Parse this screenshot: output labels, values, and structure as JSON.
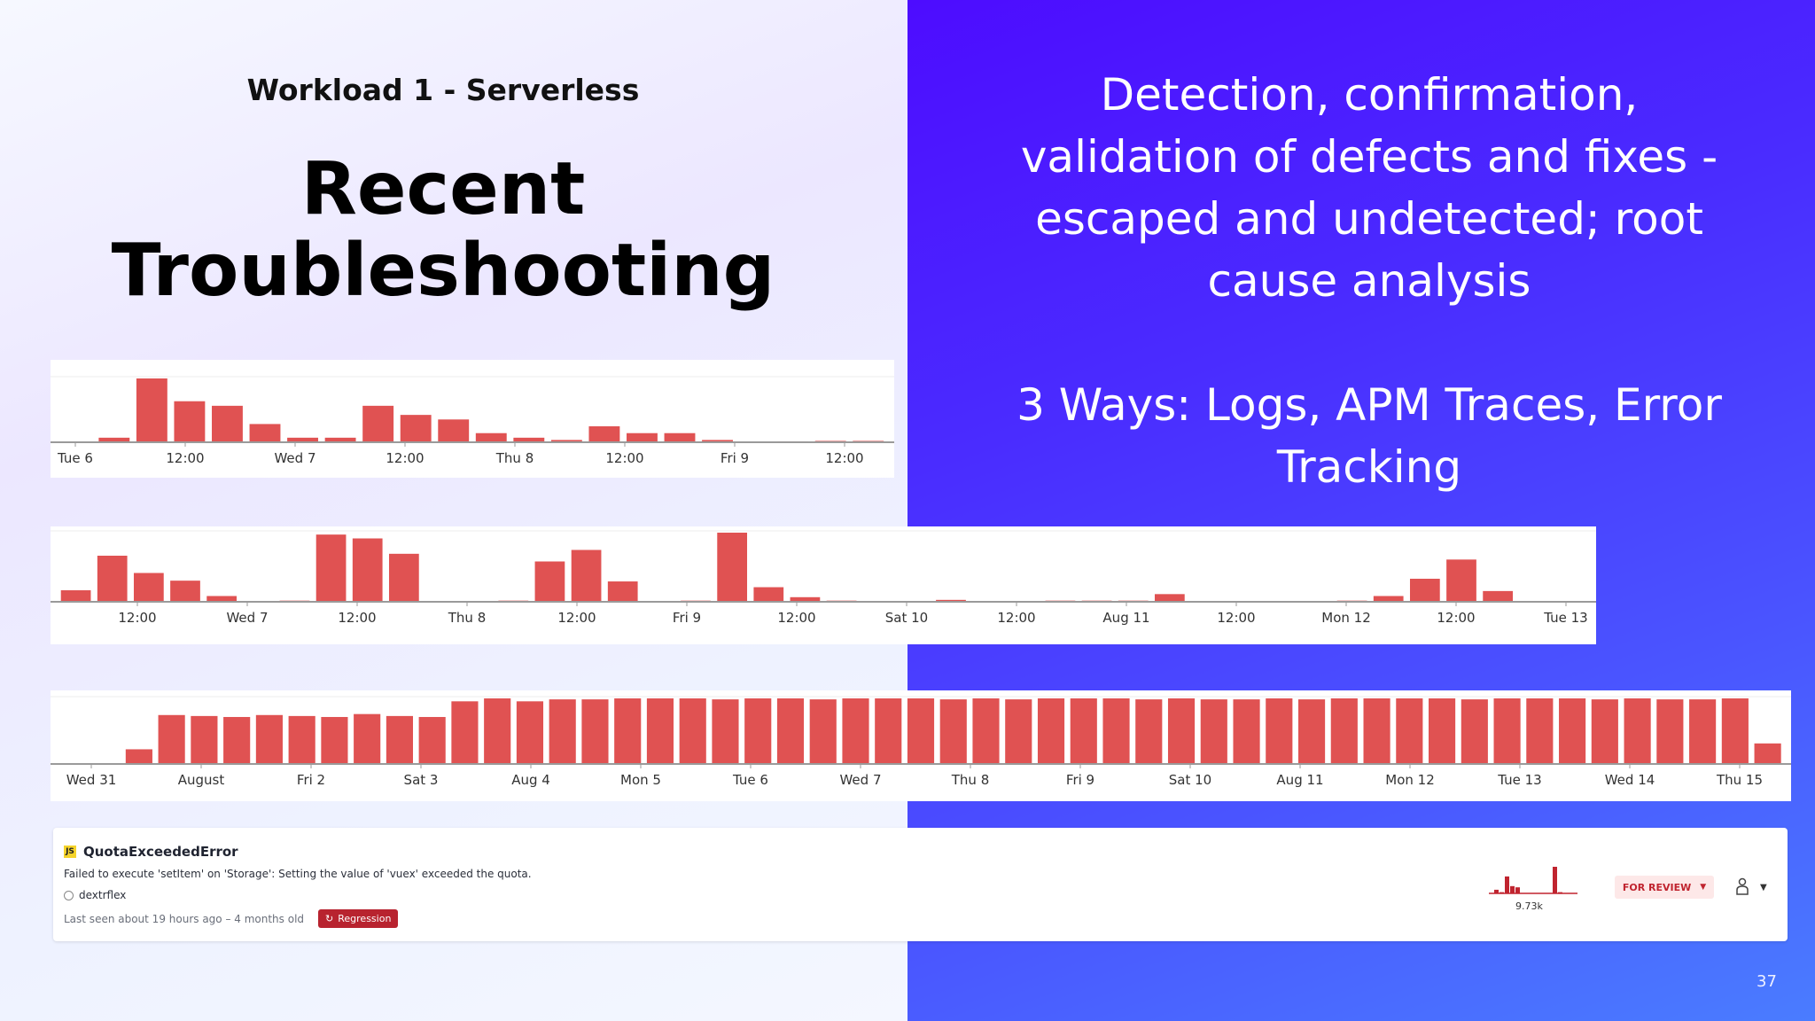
{
  "slide": {
    "subtitle": "Workload 1 - Serverless",
    "title": "Recent Troubleshooting",
    "right_paragraph_1": "Detection, confirmation, validation of defects and fixes - escaped and undetected; root cause analysis",
    "right_paragraph_2": "3 Ways: Logs, APM Traces, Error Tracking",
    "page_number": "37",
    "colors": {
      "left_background": "#eeeeff",
      "right_background": "#4a2cff",
      "bar": "#e05252"
    }
  },
  "chart_data": [
    {
      "type": "bar",
      "tick_labels": [
        "Tue 6",
        "12:00",
        "Wed 7",
        "12:00",
        "Thu 8",
        "12:00",
        "Fri 9",
        "12:00"
      ],
      "values": [
        0,
        1,
        14,
        9,
        8,
        4,
        1,
        1,
        8,
        6,
        5,
        2,
        1,
        0.5,
        3.5,
        2,
        2,
        0.5,
        0,
        0.2,
        0.3,
        0.3
      ]
    },
    {
      "type": "bar",
      "tick_labels": [
        "12:00",
        "Wed 7",
        "12:00",
        "Thu 8",
        "12:00",
        "Fri 9",
        "12:00",
        "Sat 10",
        "12:00",
        "Aug 11",
        "12:00",
        "Mon 12",
        "12:00",
        "Tue 13"
      ],
      "values": [
        3,
        12,
        7.5,
        5.5,
        1.5,
        0,
        0.3,
        17.5,
        16.5,
        12.5,
        0,
        0,
        0.3,
        10.5,
        13.5,
        5.3,
        0,
        0.3,
        18,
        3.8,
        1.2,
        0.3,
        0,
        0,
        0.5,
        0,
        0,
        0.3,
        0.3,
        0.3,
        2,
        0,
        0,
        0,
        0,
        0.3,
        1.5,
        6,
        11,
        2.8,
        0,
        0
      ]
    },
    {
      "type": "bar",
      "tick_labels": [
        "Wed 31",
        "August",
        "Fri 2",
        "Sat 3",
        "Aug 4",
        "Mon 5",
        "Tue 6",
        "Wed 7",
        "Thu 8",
        "Fri 9",
        "Sat 10",
        "Aug 11",
        "Mon 12",
        "Tue 13",
        "Wed 14",
        "Thu 15"
      ],
      "values": [
        0,
        0,
        15,
        50,
        49,
        48,
        50,
        49,
        48,
        51,
        49,
        48,
        64,
        67,
        64,
        66,
        66,
        67,
        67,
        67,
        66,
        67,
        67,
        66,
        67,
        67,
        67,
        66,
        67,
        66,
        67,
        67,
        67,
        66,
        67,
        66,
        66,
        67,
        66,
        67,
        67,
        67,
        67,
        66,
        67,
        67,
        67,
        66,
        67,
        66,
        66,
        67,
        21
      ]
    }
  ],
  "error_item": {
    "language_badge": "JS",
    "title": "QuotaExceededError",
    "message": "Failed to execute 'setItem' on 'Storage': Setting the value of 'vuex' exceeded the quota.",
    "app": "dextrflex",
    "last_seen": "Last seen about 19 hours ago – 4 months old",
    "badge": "Regression",
    "count": "9.73k",
    "sparkline": [
      3,
      1,
      14,
      6,
      5,
      0,
      0,
      0,
      0,
      0,
      0,
      22,
      1
    ],
    "status_button": "FOR REVIEW"
  }
}
